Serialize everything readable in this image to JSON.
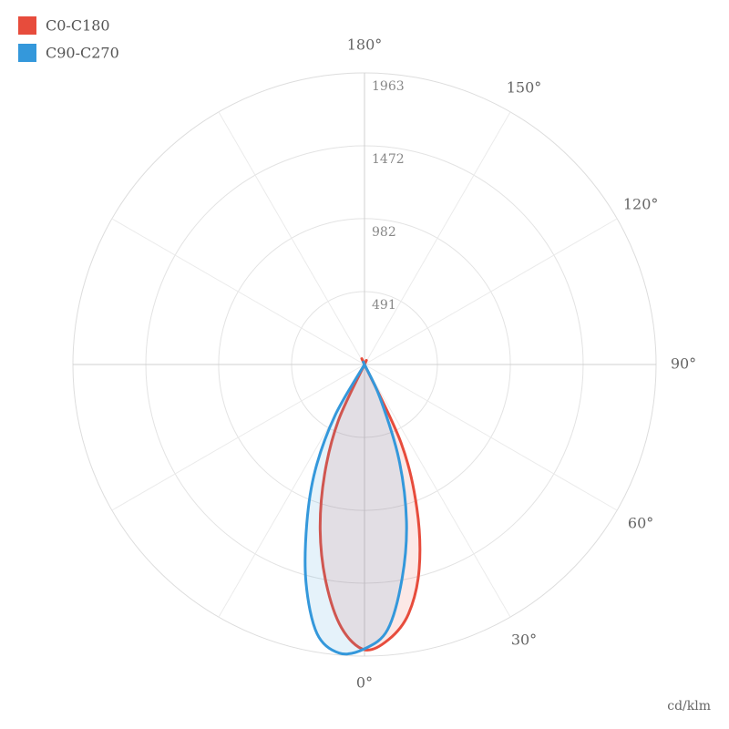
{
  "chart_data": {
    "type": "polar",
    "unit_label": "cd/klm",
    "x": [
      -35,
      -30,
      -25,
      -20,
      -15,
      -10,
      -5,
      0,
      5,
      10,
      15,
      20,
      25,
      30,
      35
    ],
    "series": [
      {
        "name": "C0-C180",
        "color": "#e74c3c",
        "values": [
          0,
          0,
          417,
          785,
          1153,
          1491,
          1779,
          1920,
          1859,
          1705,
          1423,
          1031,
          583,
          0,
          0
        ]
      },
      {
        "name": "C90-C270",
        "color": "#3498db",
        "values": [
          0,
          399,
          785,
          1135,
          1521,
          1840,
          1950,
          1914,
          1791,
          1460,
          1092,
          675,
          245,
          0,
          0
        ]
      }
    ],
    "ylim": [
      0,
      1963
    ],
    "yticks": [
      491,
      982,
      1472,
      1963
    ],
    "xticks": [
      {
        "value": 0,
        "label": "0°"
      },
      {
        "value": 30,
        "label": "30°"
      },
      {
        "value": 60,
        "label": "60°"
      },
      {
        "value": 90,
        "label": "90°"
      },
      {
        "value": 120,
        "label": "120°"
      },
      {
        "value": 150,
        "label": "150°"
      },
      {
        "value": 180,
        "label": "180°"
      }
    ],
    "legend": "top-left"
  }
}
